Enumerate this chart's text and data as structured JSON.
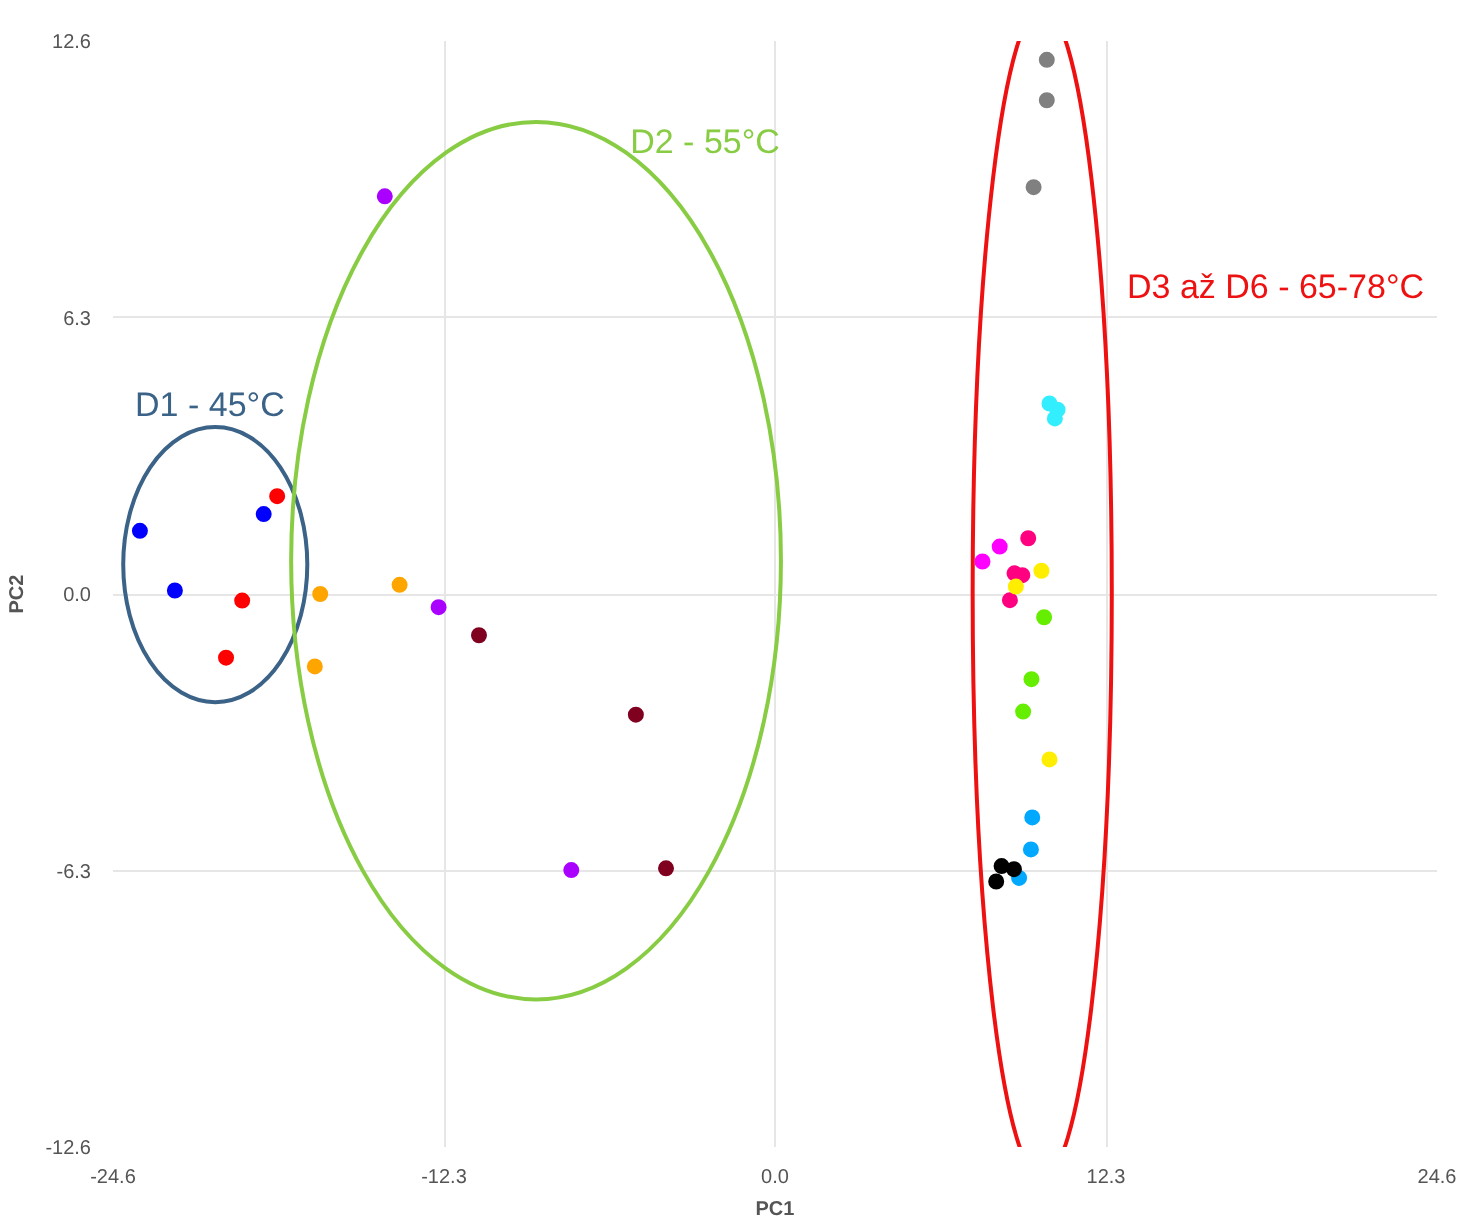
{
  "chart_data": {
    "type": "scatter",
    "xlabel": "PC1",
    "ylabel": "PC2",
    "xlim": [
      -24.6,
      24.6
    ],
    "ylim": [
      -12.6,
      12.6
    ],
    "xticks": [
      {
        "value": -24.6,
        "label": "-24.6"
      },
      {
        "value": -12.3,
        "label": "-12.3"
      },
      {
        "value": 0,
        "label": "0.0"
      },
      {
        "value": 12.3,
        "label": "12.3"
      },
      {
        "value": 24.6,
        "label": "24.6"
      }
    ],
    "yticks": [
      {
        "value": -12.6,
        "label": "-12.6"
      },
      {
        "value": -6.3,
        "label": "-6.3"
      },
      {
        "value": 0,
        "label": "0.0"
      },
      {
        "value": 6.3,
        "label": "6.3"
      },
      {
        "value": 12.6,
        "label": "12.6"
      }
    ],
    "grid": true,
    "marker": "circle",
    "series": [
      {
        "color": "#0000ff",
        "x": [
          -23.6,
          -22.3,
          -19.0
        ],
        "values": [
          1.44,
          0.08,
          1.82
        ]
      },
      {
        "color": "#ff0000",
        "x": [
          -18.5,
          -19.8,
          -20.4
        ],
        "values": [
          2.23,
          -0.15,
          -1.45
        ]
      },
      {
        "color": "#ffa500",
        "x": [
          -16.9,
          -13.95,
          -17.1
        ],
        "values": [
          0.0,
          0.21,
          -1.65
        ]
      },
      {
        "color": "#aa00ff",
        "x": [
          -14.5,
          -12.5,
          -7.57
        ],
        "values": [
          9.06,
          -0.3,
          -6.29
        ]
      },
      {
        "color": "#800020",
        "x": [
          -11.0,
          -5.17,
          -4.05
        ],
        "values": [
          -0.94,
          -2.75,
          -6.25
        ]
      },
      {
        "color": "#808080",
        "x": [
          10.1,
          10.1,
          9.61
        ],
        "values": [
          12.17,
          11.25,
          9.27
        ]
      },
      {
        "color": "#33eeff",
        "x": [
          10.2,
          10.5,
          10.4
        ],
        "values": [
          4.34,
          4.2,
          4.0
        ]
      },
      {
        "color": "#ff00ff",
        "x": [
          8.35,
          7.71
        ],
        "values": [
          1.08,
          0.74
        ]
      },
      {
        "color": "#ff0080",
        "x": [
          9.41,
          8.9,
          9.19,
          8.73
        ],
        "values": [
          1.27,
          0.47,
          0.43,
          -0.14
        ]
      },
      {
        "color": "#ffee00",
        "x": [
          9.9,
          8.95,
          10.2
        ],
        "values": [
          0.53,
          0.17,
          -3.77
        ]
      },
      {
        "color": "#66ee00",
        "x": [
          10.0,
          9.53,
          9.22
        ],
        "values": [
          -0.53,
          -1.94,
          -2.68
        ]
      },
      {
        "color": "#00a8ff",
        "x": [
          9.56,
          9.51,
          9.07
        ],
        "values": [
          -5.09,
          -5.82,
          -6.47
        ]
      },
      {
        "color": "#000000",
        "x": [
          8.42,
          8.88,
          8.22
        ],
        "values": [
          -6.2,
          -6.27,
          -6.55
        ]
      }
    ],
    "annotations": [
      "D1 - 45°C",
      "D2 - 55°C",
      "D3 až D6 - 65-78°C"
    ]
  }
}
